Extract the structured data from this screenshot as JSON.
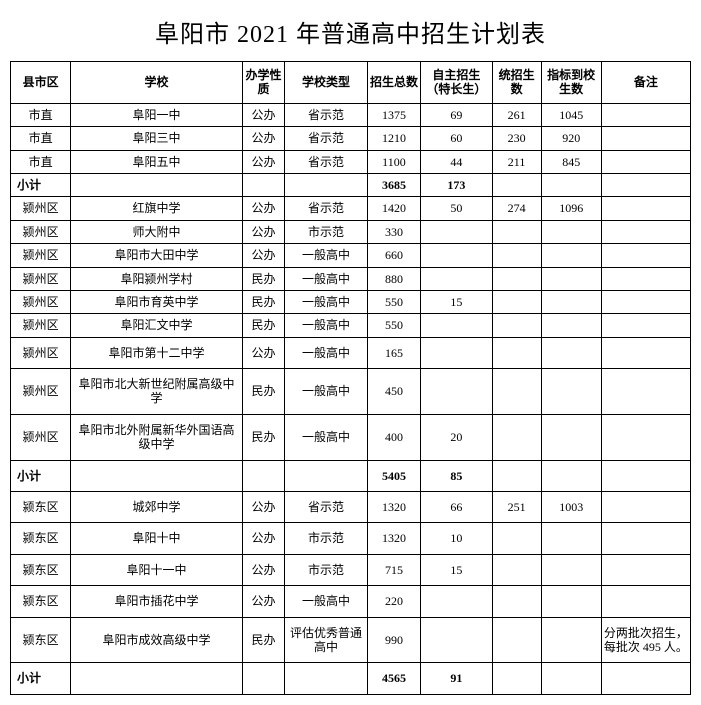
{
  "title": "阜阳市 2021 年普通高中招生计划表",
  "columns": [
    "县市区",
    "学校",
    "办学性质",
    "学校类型",
    "招生总数",
    "自主招生（特长生）",
    "统招生数",
    "指标到校生数",
    "备注"
  ],
  "rows": [
    {
      "d": "市直",
      "s": "阜阳一中",
      "n": "公办",
      "t": "省示范",
      "tot": "1375",
      "self": "69",
      "uni": "261",
      "quo": "1045",
      "note": ""
    },
    {
      "d": "市直",
      "s": "阜阳三中",
      "n": "公办",
      "t": "省示范",
      "tot": "1210",
      "self": "60",
      "uni": "230",
      "quo": "920",
      "note": ""
    },
    {
      "d": "市直",
      "s": "阜阳五中",
      "n": "公办",
      "t": "省示范",
      "tot": "1100",
      "self": "44",
      "uni": "211",
      "quo": "845",
      "note": ""
    },
    {
      "subtotal": true,
      "label": "小计",
      "tot": "3685",
      "self": "173",
      "uni": "",
      "quo": "",
      "note": ""
    },
    {
      "d": "颍州区",
      "s": "红旗中学",
      "n": "公办",
      "t": "省示范",
      "tot": "1420",
      "self": "50",
      "uni": "274",
      "quo": "1096",
      "note": ""
    },
    {
      "d": "颍州区",
      "s": "师大附中",
      "n": "公办",
      "t": "市示范",
      "tot": "330",
      "self": "",
      "uni": "",
      "quo": "",
      "note": ""
    },
    {
      "d": "颍州区",
      "s": "阜阳市大田中学",
      "n": "公办",
      "t": "一般高中",
      "tot": "660",
      "self": "",
      "uni": "",
      "quo": "",
      "note": ""
    },
    {
      "d": "颍州区",
      "s": "阜阳颍州学村",
      "n": "民办",
      "t": "一般高中",
      "tot": "880",
      "self": "",
      "uni": "",
      "quo": "",
      "note": ""
    },
    {
      "d": "颍州区",
      "s": "阜阳市育英中学",
      "n": "民办",
      "t": "一般高中",
      "tot": "550",
      "self": "15",
      "uni": "",
      "quo": "",
      "note": ""
    },
    {
      "d": "颍州区",
      "s": "阜阳汇文中学",
      "n": "民办",
      "t": "一般高中",
      "tot": "550",
      "self": "",
      "uni": "",
      "quo": "",
      "note": ""
    },
    {
      "d": "颍州区",
      "s": "阜阳市第十二中学",
      "n": "公办",
      "t": "一般高中",
      "tot": "165",
      "self": "",
      "uni": "",
      "quo": "",
      "note": "",
      "tall": true
    },
    {
      "d": "颍州区",
      "s": "阜阳市北大新世纪附属高级中学",
      "n": "民办",
      "t": "一般高中",
      "tot": "450",
      "self": "",
      "uni": "",
      "quo": "",
      "note": "",
      "tall": true
    },
    {
      "d": "颍州区",
      "s": "阜阳市北外附属新华外国语高级中学",
      "n": "民办",
      "t": "一般高中",
      "tot": "400",
      "self": "20",
      "uni": "",
      "quo": "",
      "note": "",
      "tall": true
    },
    {
      "subtotal": true,
      "label": "小计",
      "tot": "5405",
      "self": "85",
      "uni": "",
      "quo": "",
      "note": "",
      "tall": true
    },
    {
      "d": "颍东区",
      "s": "城郊中学",
      "n": "公办",
      "t": "省示范",
      "tot": "1320",
      "self": "66",
      "uni": "251",
      "quo": "1003",
      "note": "",
      "tall": true
    },
    {
      "d": "颍东区",
      "s": "阜阳十中",
      "n": "公办",
      "t": "市示范",
      "tot": "1320",
      "self": "10",
      "uni": "",
      "quo": "",
      "note": "",
      "tall": true
    },
    {
      "d": "颍东区",
      "s": "阜阳十一中",
      "n": "公办",
      "t": "市示范",
      "tot": "715",
      "self": "15",
      "uni": "",
      "quo": "",
      "note": "",
      "tall": true
    },
    {
      "d": "颍东区",
      "s": "阜阳市插花中学",
      "n": "公办",
      "t": "一般高中",
      "tot": "220",
      "self": "",
      "uni": "",
      "quo": "",
      "note": "",
      "tall": true
    },
    {
      "d": "颍东区",
      "s": "阜阳市成效高级中学",
      "n": "民办",
      "t": "评估优秀普通高中",
      "tot": "990",
      "self": "",
      "uni": "",
      "quo": "",
      "note": "分两批次招生，每批次 495 人。",
      "tall": true
    },
    {
      "subtotal": true,
      "label": "小计",
      "tot": "4565",
      "self": "91",
      "uni": "",
      "quo": "",
      "note": "",
      "tall": true
    }
  ]
}
